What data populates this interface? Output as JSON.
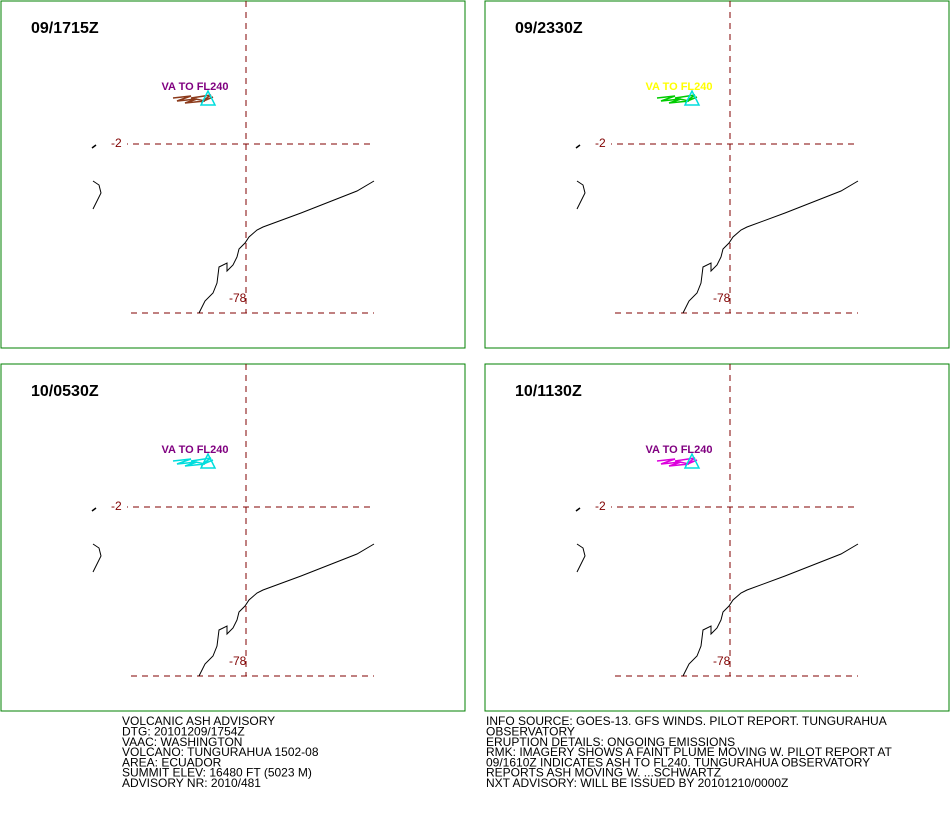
{
  "panels": [
    {
      "time": "09/1715Z",
      "label": "VA TO FL240",
      "label_color": "#800080",
      "plume_color": "#8b3a1a",
      "lat_label": "-2",
      "lon_label": "-78"
    },
    {
      "time": "09/2330Z",
      "label": "VA TO FL240",
      "label_color": "#ffff00",
      "plume_color": "#00cc00",
      "lat_label": "-2",
      "lon_label": "-78"
    },
    {
      "time": "10/0530Z",
      "label": "VA TO FL240",
      "label_color": "#800080",
      "plume_color": "#00dddd",
      "lat_label": "-2",
      "lon_label": "-78"
    },
    {
      "time": "10/1130Z",
      "label": "VA TO FL240",
      "label_color": "#800080",
      "plume_color": "#dd00dd",
      "lat_label": "-2",
      "lon_label": "-78"
    }
  ],
  "footer_left": [
    "VOLCANIC ASH ADVISORY",
    "DTG: 20101209/1754Z",
    "VAAC: WASHINGTON",
    "VOLCANO: TUNGURAHUA 1502-08",
    "AREA: ECUADOR",
    "SUMMIT ELEV: 16480 FT (5023 M)",
    "ADVISORY NR: 2010/481"
  ],
  "footer_right": [
    "INFO SOURCE: GOES-13. GFS WINDS. PILOT REPORT. TUNGURAHUA",
    "OBSERVATORY",
    "ERUPTION DETAILS: ONGOING EMISSIONS",
    "RMK: IMAGERY SHOWS A FAINT PLUME MOVING W. PILOT REPORT AT",
    "09/1610Z INDICATES ASH TO FL240. TUNGURAHUA OBSERVATORY",
    "REPORTS ASH MOVING W. ...SCHWARTZ",
    "NXT ADVISORY: WILL BE ISSUED BY 20101210/0000Z"
  ]
}
